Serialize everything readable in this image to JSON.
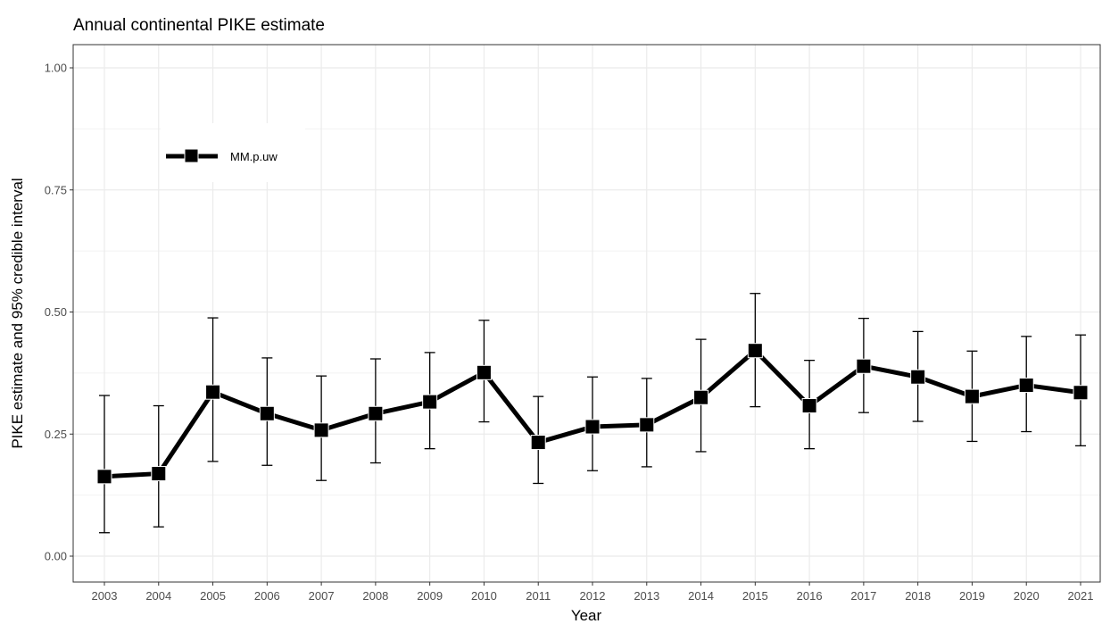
{
  "chart_data": {
    "type": "line",
    "title": "Annual continental PIKE estimate",
    "xlabel": "Year",
    "ylabel": "PIKE estimate and 95% credible interval",
    "x": [
      "2003",
      "2004",
      "2005",
      "2006",
      "2007",
      "2008",
      "2009",
      "2010",
      "2011",
      "2012",
      "2013",
      "2014",
      "2015",
      "2016",
      "2017",
      "2018",
      "2019",
      "2020",
      "2021"
    ],
    "ylim": [
      0,
      1
    ],
    "yticks": [
      "0.00",
      "0.25",
      "0.50",
      "0.75",
      "1.00"
    ],
    "grid": true,
    "legend_position": "top-left",
    "series": [
      {
        "name": "MM.p.uw",
        "color": "#000000",
        "marker": "square",
        "values": [
          0.163,
          0.169,
          0.336,
          0.292,
          0.258,
          0.292,
          0.316,
          0.376,
          0.233,
          0.265,
          0.269,
          0.325,
          0.421,
          0.308,
          0.389,
          0.367,
          0.327,
          0.35,
          0.335
        ],
        "lower": [
          0.048,
          0.06,
          0.194,
          0.186,
          0.155,
          0.191,
          0.22,
          0.275,
          0.149,
          0.175,
          0.183,
          0.214,
          0.306,
          0.22,
          0.294,
          0.276,
          0.235,
          0.255,
          0.226
        ],
        "upper": [
          0.329,
          0.308,
          0.488,
          0.406,
          0.369,
          0.404,
          0.417,
          0.483,
          0.327,
          0.367,
          0.364,
          0.444,
          0.538,
          0.401,
          0.487,
          0.46,
          0.42,
          0.45,
          0.453
        ]
      }
    ]
  }
}
